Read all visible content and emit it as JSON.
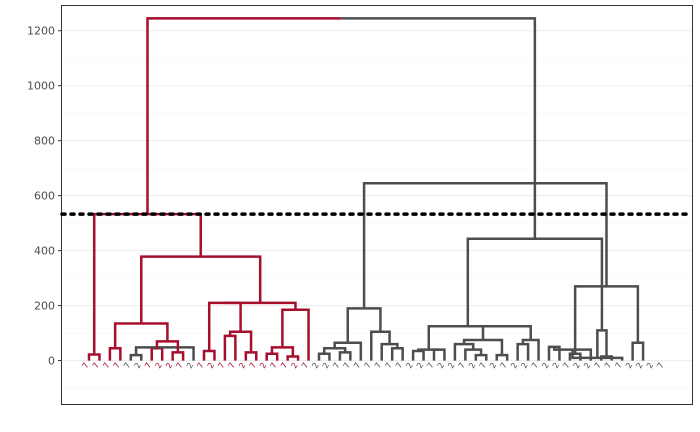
{
  "chart_data": {
    "type": "dendrogram",
    "title": "",
    "xlabel": "",
    "ylabel": "",
    "ylim": [
      -158,
      1290
    ],
    "y_ticks": [
      0,
      200,
      400,
      600,
      800,
      1000,
      1200
    ],
    "y_tick_labels": [
      "0",
      "200",
      "400",
      "600",
      "800",
      "1000",
      "1200"
    ],
    "grid": true,
    "cut_height": 533,
    "cluster_colors": {
      "left": "#a50f2d",
      "right": "#4d4d4d",
      "cut_line": "#000000"
    },
    "leaf_labels": [
      "7",
      "7",
      "7",
      "7",
      "7",
      "2",
      "7",
      "2",
      "2",
      "7",
      "2",
      "7",
      "2",
      "7",
      "7",
      "2",
      "7",
      "2",
      "7",
      "7",
      "2",
      "7",
      "2",
      "2",
      "7",
      "7",
      "7",
      "7",
      "7",
      "7",
      "7",
      "2",
      "2",
      "7",
      "2",
      "2",
      "7",
      "2",
      "7",
      "2",
      "7",
      "2",
      "2",
      "7",
      "2",
      "2",
      "7",
      "2",
      "2",
      "7",
      "7",
      "7",
      "2",
      "2",
      "2",
      "7"
    ],
    "merges": [
      {
        "l": [
          1,
          2
        ],
        "h": 22
      },
      {
        "l": [
          3,
          4
        ],
        "h": 45
      },
      {
        "l": [
          5,
          6
        ],
        "h": 20
      },
      {
        "l": [
          7,
          8
        ],
        "h": 45
      },
      {
        "l": [
          9,
          10
        ],
        "h": 30
      },
      {
        "l": [
          -3,
          11
        ],
        "h": 48
      },
      {
        "l": [
          -4,
          -5
        ],
        "h": 70
      },
      {
        "l": [
          -2,
          -7
        ],
        "h": 135
      },
      {
        "l": [
          12,
          13
        ],
        "h": 35
      },
      {
        "l": [
          14,
          15
        ],
        "h": 90
      },
      {
        "l": [
          16,
          17
        ],
        "h": 30
      },
      {
        "l": [
          -10,
          -11
        ],
        "h": 105
      },
      {
        "l": [
          -9,
          -12
        ],
        "h": 210
      },
      {
        "l": [
          18,
          19
        ],
        "h": 25
      },
      {
        "l": [
          20,
          21
        ],
        "h": 15
      },
      {
        "l": [
          -14,
          -15
        ],
        "h": 48
      },
      {
        "l": [
          -16,
          22
        ],
        "h": 185
      },
      {
        "l": [
          -13,
          -17
        ],
        "h": 210
      },
      {
        "l": [
          -8,
          -18
        ],
        "h": 378
      },
      {
        "l": [
          -1,
          -19
        ],
        "h": 533
      },
      {
        "l": [
          23,
          24
        ],
        "h": 25
      },
      {
        "l": [
          25,
          26
        ],
        "h": 30
      },
      {
        "l": [
          -21,
          -22
        ],
        "h": 45
      },
      {
        "l": [
          27,
          -23
        ],
        "h": 65
      },
      {
        "l": [
          30,
          31
        ],
        "h": 45
      },
      {
        "l": [
          29,
          -25
        ],
        "h": 60
      },
      {
        "l": [
          28,
          -26
        ],
        "h": 105
      },
      {
        "l": [
          -24,
          -27
        ],
        "h": 190
      },
      {
        "l": [
          32,
          33
        ],
        "h": 35
      },
      {
        "l": [
          34,
          35
        ],
        "h": 40
      },
      {
        "l": [
          -29,
          -30
        ],
        "h": 40
      },
      {
        "l": [
          38,
          39
        ],
        "h": 20
      },
      {
        "l": [
          37,
          -32
        ],
        "h": 40
      },
      {
        "l": [
          36,
          -33
        ],
        "h": 60
      },
      {
        "l": [
          40,
          41
        ],
        "h": 20
      },
      {
        "l": [
          -34,
          -35
        ],
        "h": 75
      },
      {
        "l": [
          42,
          43
        ],
        "h": 60
      },
      {
        "l": [
          44,
          -37
        ],
        "h": 75
      },
      {
        "l": [
          -36,
          -38
        ],
        "h": 125
      },
      {
        "l": [
          -31,
          -39
        ],
        "h": 125
      },
      {
        "l": [
          45,
          46
        ],
        "h": 50
      },
      {
        "l": [
          47,
          48
        ],
        "h": 25
      },
      {
        "l": [
          -41,
          49
        ],
        "h": 40
      },
      {
        "l": [
          50,
          51
        ],
        "h": 15
      },
      {
        "l": [
          -43,
          52
        ],
        "h": 10
      },
      {
        "l": [
          53,
          54
        ],
        "h": 65
      },
      {
        "l": [
          -44,
          -45
        ],
        "h": 110
      },
      {
        "l": [
          -42,
          -46
        ],
        "h": 270
      },
      {
        "l": [
          -40,
          -47
        ],
        "h": 443
      },
      {
        "l": [
          -28,
          -48
        ],
        "h": 645
      },
      {
        "l": [
          -20,
          -49
        ],
        "h": 1245
      }
    ]
  }
}
